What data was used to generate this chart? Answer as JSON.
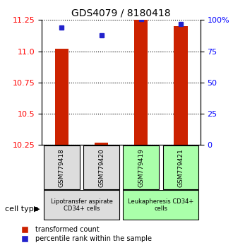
{
  "title": "GDS4079 / 8180418",
  "samples": [
    "GSM779418",
    "GSM779420",
    "GSM779419",
    "GSM779421"
  ],
  "red_bar_values": [
    11.02,
    10.27,
    11.25,
    11.2
  ],
  "blue_dot_values": [
    11.19,
    11.13,
    11.26,
    11.22
  ],
  "ymin": 10.25,
  "ymax": 11.25,
  "yticks_left": [
    10.25,
    10.5,
    10.75,
    11.0,
    11.25
  ],
  "yticks_right": [
    0,
    25,
    50,
    75,
    100
  ],
  "bar_color": "#cc2200",
  "dot_color": "#2222cc",
  "group1_label": "Lipotransfer aspirate\nCD34+ cells",
  "group2_label": "Leukapheresis CD34+\ncells",
  "group1_color": "#dddddd",
  "group2_color": "#aaffaa",
  "group1_samples": [
    0,
    1
  ],
  "group2_samples": [
    2,
    3
  ],
  "legend_red": "transformed count",
  "legend_blue": "percentile rank within the sample",
  "cell_type_label": "cell type"
}
